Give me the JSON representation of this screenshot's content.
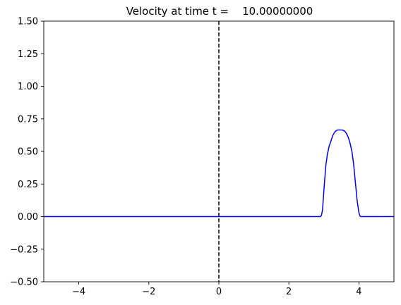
{
  "chart_data": {
    "type": "line",
    "title": "Velocity at time t =    10.00000000",
    "xlabel": "",
    "ylabel": "",
    "xlim": [
      -5,
      5
    ],
    "ylim": [
      -0.5,
      1.5
    ],
    "grid": false,
    "x_ticks": [
      -4,
      -2,
      0,
      2,
      4
    ],
    "x_tick_labels": [
      "−4",
      "−2",
      "0",
      "2",
      "4"
    ],
    "y_ticks": [
      -0.5,
      -0.25,
      0.0,
      0.25,
      0.5,
      0.75,
      1.0,
      1.25,
      1.5
    ],
    "y_tick_labels": [
      "−0.50",
      "−0.25",
      "0.00",
      "0.25",
      "0.50",
      "0.75",
      "1.00",
      "1.25",
      "1.50"
    ],
    "series": [
      {
        "color": "#0000ff",
        "x": [
          -5.0,
          2.9,
          2.93,
          2.96,
          3.0,
          3.05,
          3.1,
          3.15,
          3.2,
          3.25,
          3.3,
          3.35,
          3.4,
          3.45,
          3.5,
          3.55,
          3.6,
          3.65,
          3.7,
          3.75,
          3.8,
          3.85,
          3.9,
          3.95,
          4.0,
          4.03,
          4.06,
          4.1,
          5.0
        ],
        "y": [
          0.0,
          0.0,
          0.01,
          0.05,
          0.2,
          0.38,
          0.48,
          0.54,
          0.58,
          0.62,
          0.645,
          0.66,
          0.665,
          0.665,
          0.665,
          0.662,
          0.655,
          0.635,
          0.605,
          0.56,
          0.5,
          0.4,
          0.26,
          0.12,
          0.03,
          0.005,
          0.0,
          0.0,
          0.0
        ]
      }
    ],
    "reference_lines": [
      {
        "orientation": "vertical",
        "x": 0,
        "style": "dashed",
        "color": "#000000"
      }
    ]
  }
}
